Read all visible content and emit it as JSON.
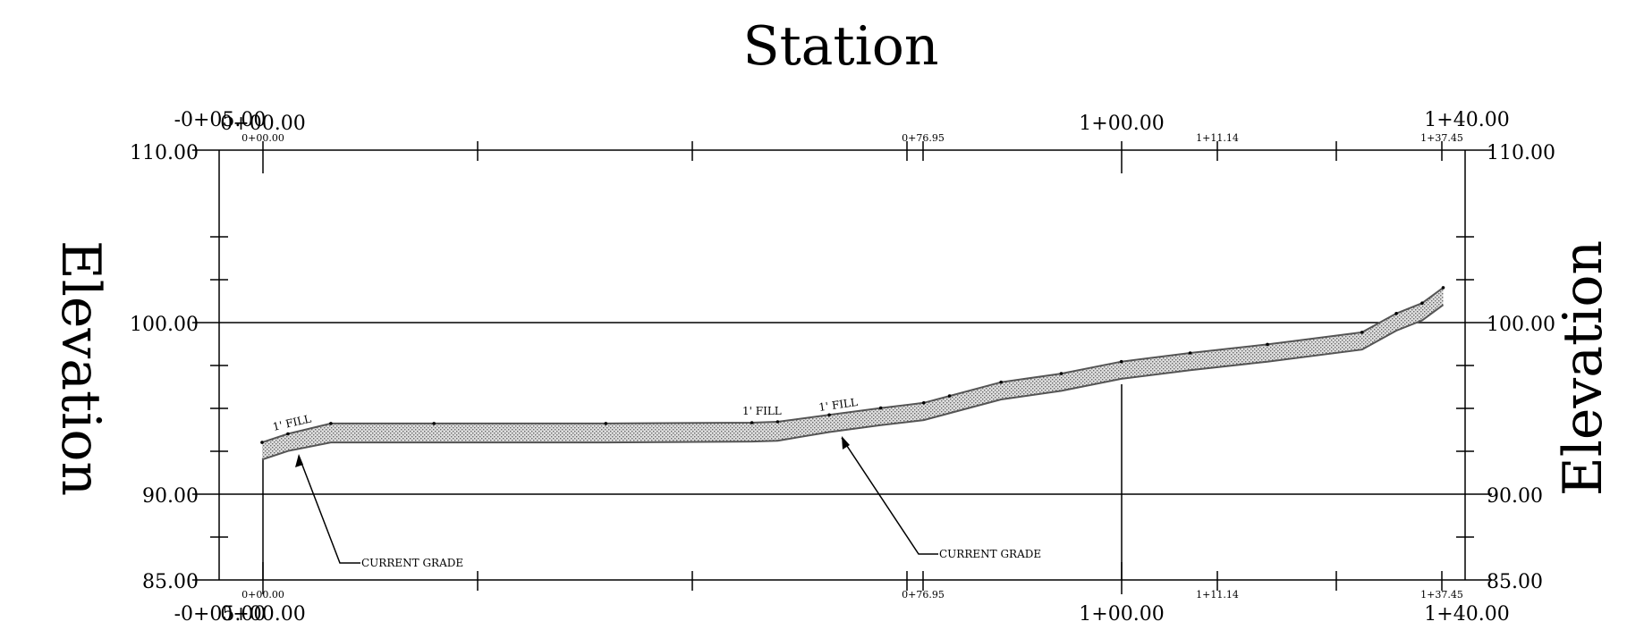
{
  "chart_data": {
    "type": "line",
    "title": "Station",
    "ylabel_left": "Elevation",
    "ylabel_right": "Elevation",
    "xlim": [
      -5,
      140
    ],
    "ylim": [
      85,
      110
    ],
    "top_axis_labels": [
      "-0+05.00",
      "0+00.00",
      "1+00.00",
      "1+40.00"
    ],
    "bottom_axis_labels": [
      "-0+05.00",
      "0+00.00",
      "1+00.00",
      "1+40.00"
    ],
    "y_tick_labels": [
      "110.00",
      "100.00",
      "90.00",
      "85.00"
    ],
    "station_callouts": [
      "0+00.00",
      "0+76.95",
      "1+11.14",
      "1+37.45"
    ],
    "annotations": {
      "fill_labels": [
        "1' FILL",
        "1' FILL",
        "1' FILL"
      ],
      "current_grade_labels": [
        "CURRENT GRADE",
        "CURRENT GRADE"
      ]
    },
    "series": [
      {
        "name": "",
        "x": [
          0,
          3,
          8,
          20,
          40,
          57,
          60,
          66,
          72,
          77,
          80,
          86,
          93,
          100,
          108,
          117,
          128,
          132,
          135,
          137.45
        ],
        "y": [
          93,
          93.5,
          94.1,
          94.1,
          94.1,
          94.15,
          94.2,
          94.6,
          95.0,
          95.3,
          95.7,
          96.5,
          97.0,
          97.7,
          98.2,
          98.7,
          99.4,
          100.5,
          101.1,
          102.0
        ]
      },
      {
        "name": "",
        "x": [
          0,
          3,
          8,
          20,
          40,
          57,
          60,
          66,
          72,
          77,
          80,
          86,
          93,
          100,
          108,
          117,
          128,
          132,
          135,
          137.45
        ],
        "y": [
          92,
          92.5,
          93.0,
          93.0,
          93.0,
          93.05,
          93.1,
          93.6,
          94.0,
          94.3,
          94.7,
          95.5,
          96.0,
          96.7,
          97.2,
          97.7,
          98.4,
          99.5,
          100.1,
          101.0
        ]
      }
    ]
  }
}
